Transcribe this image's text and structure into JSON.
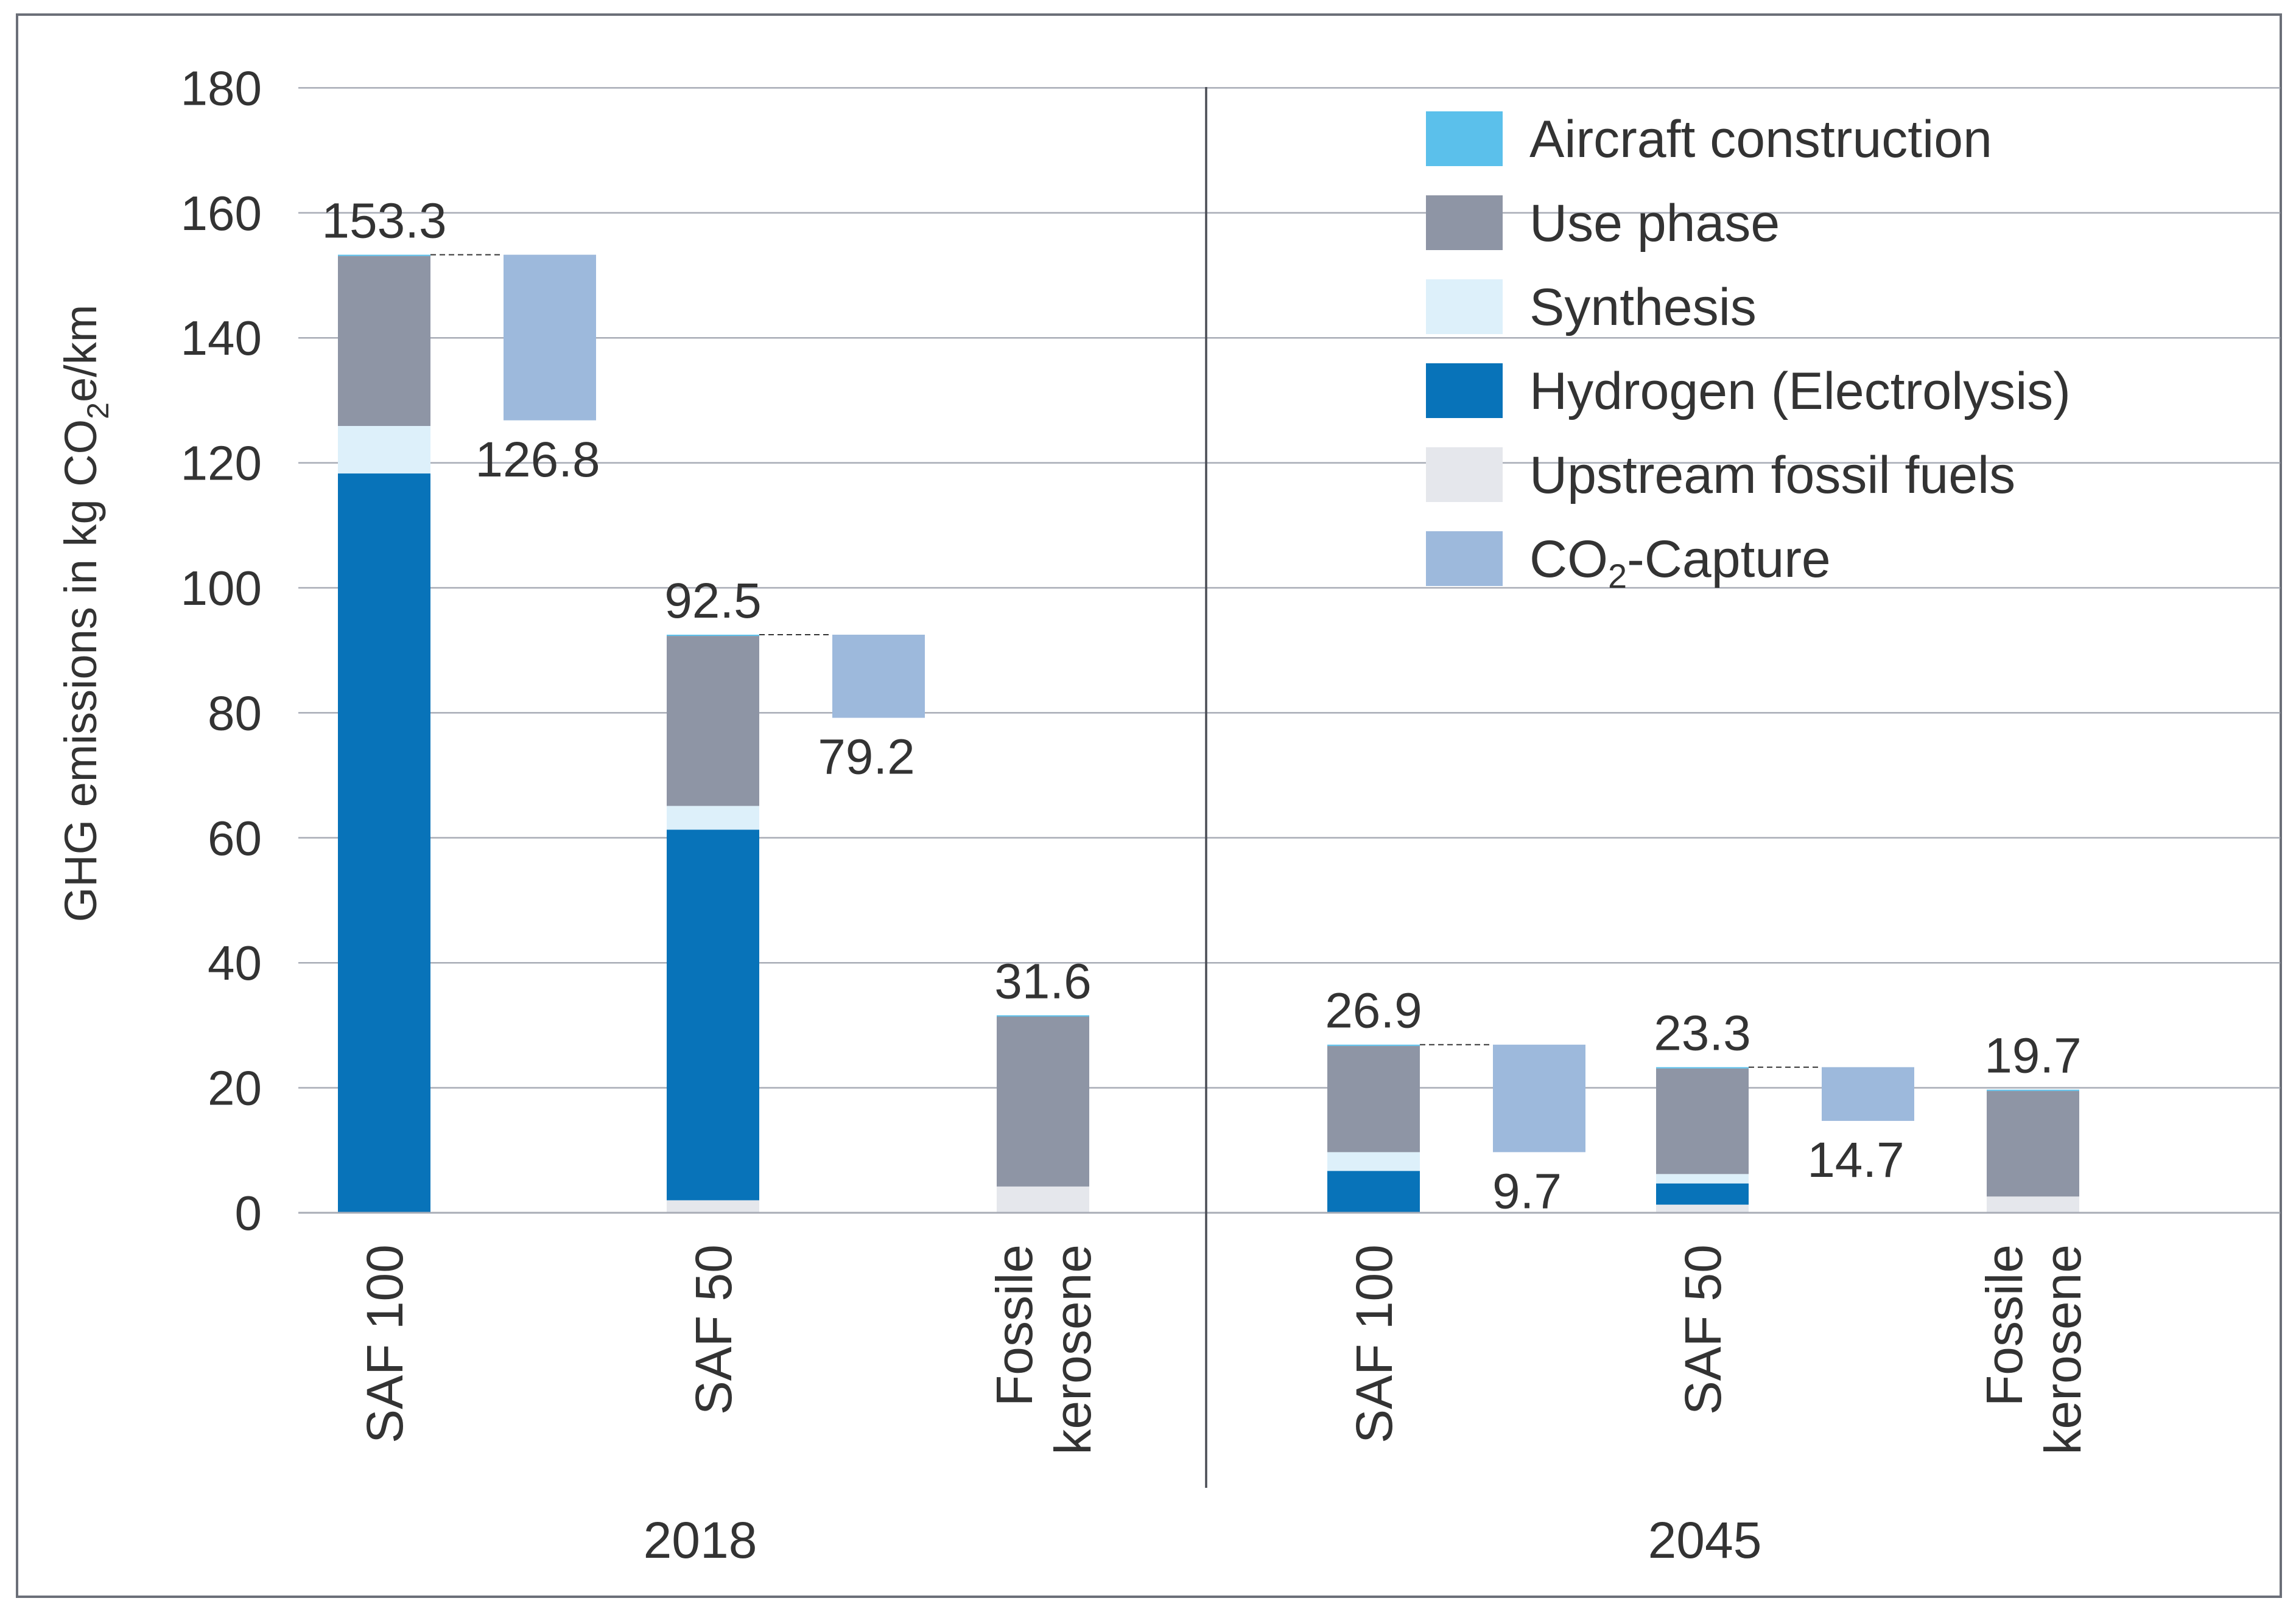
{
  "chart_data": {
    "type": "bar",
    "stacked": true,
    "waterfall_capture": true,
    "ylabel": {
      "prefix": "GHG emissions in kg CO",
      "sub": "2",
      "suffix": "e/km"
    },
    "ylim": [
      0,
      180
    ],
    "yticks": [
      "0",
      "20",
      "40",
      "60",
      "80",
      "100",
      "120",
      "140",
      "160",
      "180"
    ],
    "ytick_values": [
      0,
      20,
      40,
      60,
      80,
      100,
      120,
      140,
      160,
      180
    ],
    "grid": true,
    "legend_position": "top-right",
    "series": [
      {
        "key": "aircraft",
        "name": "Aircraft construction",
        "color": "#5bc0eb"
      },
      {
        "key": "use",
        "name": "Use phase",
        "color": "#8e95a5"
      },
      {
        "key": "synth",
        "name": "Synthesis",
        "color": "#ddf0fa"
      },
      {
        "key": "h2",
        "name": "Hydrogen (Electrolysis)",
        "color": "#0873b9"
      },
      {
        "key": "upstream",
        "name": "Upstream fossil fuels",
        "color": "#e5e7ec"
      },
      {
        "key": "capture",
        "name": "CO2-Capture",
        "name_prefix": "CO",
        "name_sub": "2",
        "name_suffix": "-Capture",
        "color": "#9db9dc"
      }
    ],
    "groups": [
      {
        "year": "2018",
        "categories": [
          {
            "label_lines": [
              "SAF 100"
            ],
            "total": "153.3",
            "net": "126.8",
            "stack": {
              "upstream": 0.0,
              "h2": 118.3,
              "synth": 7.6,
              "use": 27.2,
              "aircraft": 0.2
            },
            "capture": 26.5
          },
          {
            "label_lines": [
              "SAF 50"
            ],
            "total": "92.5",
            "net": "79.2",
            "stack": {
              "upstream": 2.0,
              "h2": 59.3,
              "synth": 3.8,
              "use": 27.2,
              "aircraft": 0.2
            },
            "capture": 13.3
          },
          {
            "label_lines": [
              "Fossile",
              "kerosene"
            ],
            "total": "31.6",
            "net": null,
            "stack": {
              "upstream": 4.2,
              "h2": 0.0,
              "synth": 0.0,
              "use": 27.2,
              "aircraft": 0.2
            },
            "capture": 0
          }
        ]
      },
      {
        "year": "2045",
        "categories": [
          {
            "label_lines": [
              "SAF 100"
            ],
            "total": "26.9",
            "net": "9.7",
            "stack": {
              "upstream": 0.0,
              "h2": 6.7,
              "synth": 3.0,
              "use": 17.0,
              "aircraft": 0.2
            },
            "capture": 17.2
          },
          {
            "label_lines": [
              "SAF 50"
            ],
            "total": "23.3",
            "net": "14.7",
            "stack": {
              "upstream": 1.3,
              "h2": 3.4,
              "synth": 1.5,
              "use": 16.9,
              "aircraft": 0.2
            },
            "capture": 8.6
          },
          {
            "label_lines": [
              "Fossile",
              "kerosene"
            ],
            "total": "19.7",
            "net": null,
            "stack": {
              "upstream": 2.6,
              "h2": 0.0,
              "synth": 0.0,
              "use": 16.9,
              "aircraft": 0.2
            },
            "capture": 0
          }
        ]
      }
    ]
  }
}
